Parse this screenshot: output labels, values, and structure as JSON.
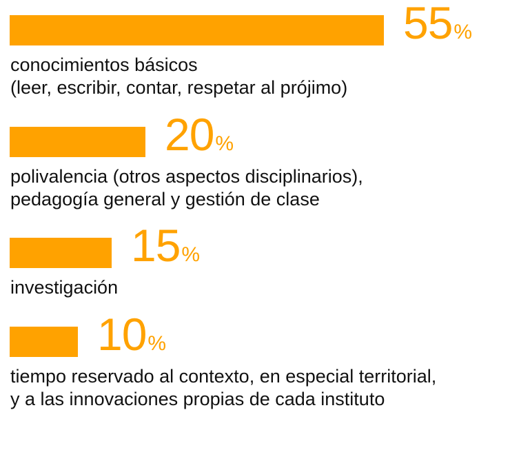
{
  "colors": {
    "bar": "#FFA200",
    "text": "#111111"
  },
  "chart_data": {
    "type": "bar",
    "orientation": "horizontal",
    "grid": false,
    "unit": "%",
    "items": [
      {
        "value": 55,
        "value_label": "55",
        "label_lines": [
          "conocimientos básicos",
          "(leer, escribir, contar, respetar al prójimo)"
        ]
      },
      {
        "value": 20,
        "value_label": "20",
        "label_lines": [
          "polivalencia (otros aspectos disciplinarios),",
          "pedagogía general y gestión de clase"
        ]
      },
      {
        "value": 15,
        "value_label": "15",
        "label_lines": [
          "investigación"
        ]
      },
      {
        "value": 10,
        "value_label": "10",
        "label_lines": [
          "tiempo reservado al contexto, en especial territorial,",
          "y a las innovaciones propias de cada instituto"
        ]
      }
    ]
  }
}
